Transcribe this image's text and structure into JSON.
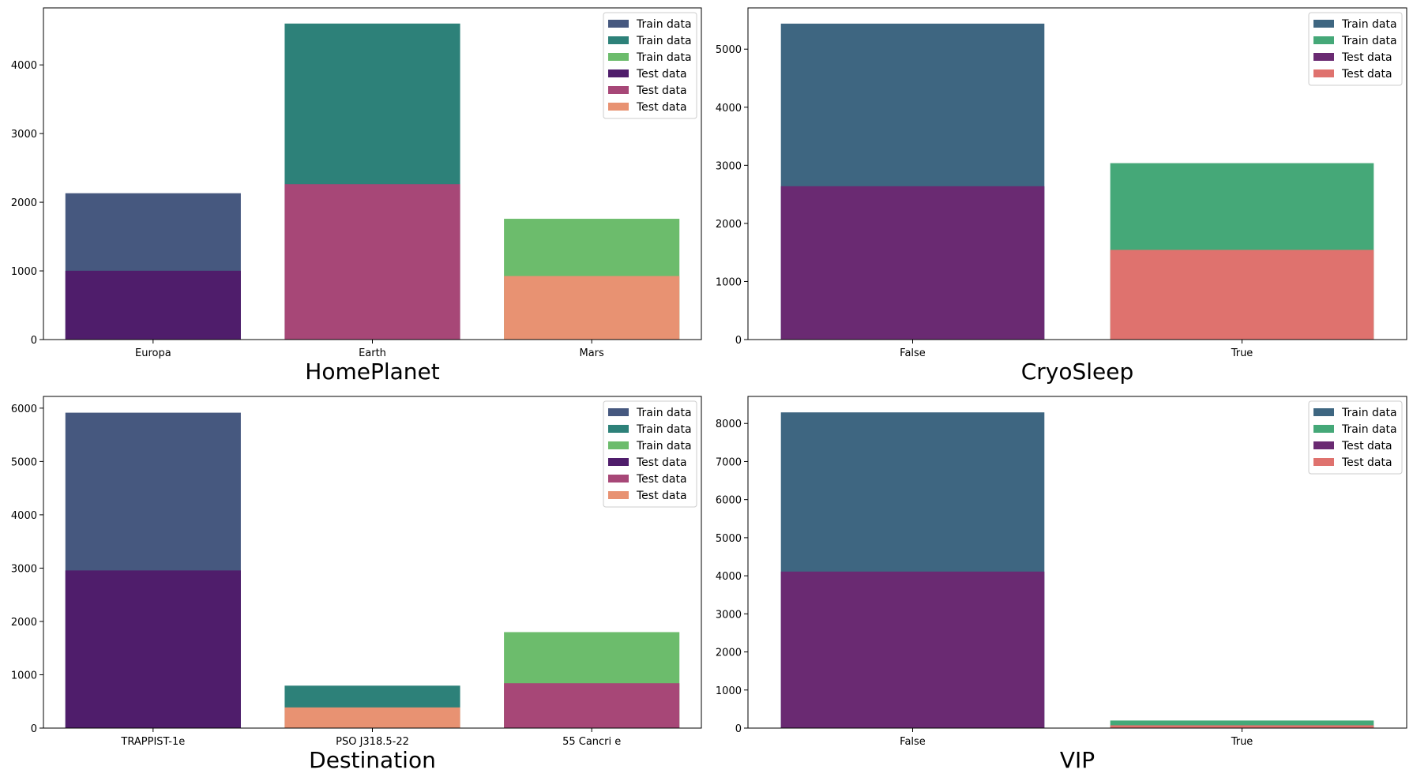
{
  "chart_data": [
    {
      "type": "bar",
      "xlabel": "HomePlanet",
      "ylabel": "",
      "categories": [
        "Europa",
        "Earth",
        "Mars"
      ],
      "ylim": [
        0,
        4830
      ],
      "yticks": [
        0,
        1000,
        2000,
        3000,
        4000
      ],
      "series": [
        {
          "name": "Train data",
          "values": [
            2131,
            4602,
            1759
          ],
          "colors": [
            "#46587f",
            "#2d8179",
            "#6cbc6c"
          ]
        },
        {
          "name": "Test data",
          "values": [
            1002,
            2263,
            925
          ],
          "colors": [
            "#4f1d6b",
            "#a74777",
            "#e89272"
          ]
        }
      ],
      "legend": {
        "location": "top-right",
        "entries": [
          {
            "label": "Train data",
            "color": "#46587f"
          },
          {
            "label": "Train data",
            "color": "#2d8179"
          },
          {
            "label": "Train data",
            "color": "#6cbc6c"
          },
          {
            "label": "Test data",
            "color": "#4f1d6b"
          },
          {
            "label": "Test data",
            "color": "#a74777"
          },
          {
            "label": "Test data",
            "color": "#e89272"
          }
        ]
      }
    },
    {
      "type": "bar",
      "xlabel": "CryoSleep",
      "ylabel": "",
      "categories": [
        "False",
        "True"
      ],
      "ylim": [
        0,
        5710
      ],
      "yticks": [
        0,
        1000,
        2000,
        3000,
        4000,
        5000
      ],
      "series": [
        {
          "name": "Train data",
          "values": [
            5439,
            3037
          ],
          "colors": [
            "#3e6681",
            "#45a878"
          ]
        },
        {
          "name": "Test data",
          "values": [
            2640,
            1544
          ],
          "colors": [
            "#6a2a72",
            "#df726e"
          ]
        }
      ],
      "legend": {
        "location": "top-right",
        "entries": [
          {
            "label": "Train data",
            "color": "#3e6681"
          },
          {
            "label": "Train data",
            "color": "#45a878"
          },
          {
            "label": "Test data",
            "color": "#6a2a72"
          },
          {
            "label": "Test data",
            "color": "#df726e"
          }
        ]
      }
    },
    {
      "type": "bar",
      "xlabel": "Destination",
      "ylabel": "",
      "categories": [
        "TRAPPIST-1e",
        "PSO J318.5-22",
        "55 Cancri e"
      ],
      "ylim": [
        0,
        6220
      ],
      "yticks": [
        0,
        1000,
        2000,
        3000,
        4000,
        5000,
        6000
      ],
      "series": [
        {
          "name": "Train data",
          "values": [
            5915,
            796,
            1800
          ],
          "colors": [
            "#46587f",
            "#2d8179",
            "#6cbc6c"
          ]
        },
        {
          "name": "Test data",
          "values": [
            2956,
            388,
            841
          ],
          "colors": [
            "#4f1d6b",
            "#e89272",
            "#a74777"
          ]
        }
      ],
      "legend": {
        "location": "top-right",
        "entries": [
          {
            "label": "Train data",
            "color": "#46587f"
          },
          {
            "label": "Train data",
            "color": "#2d8179"
          },
          {
            "label": "Train data",
            "color": "#6cbc6c"
          },
          {
            "label": "Test data",
            "color": "#4f1d6b"
          },
          {
            "label": "Test data",
            "color": "#a74777"
          },
          {
            "label": "Test data",
            "color": "#e89272"
          }
        ]
      }
    },
    {
      "type": "bar",
      "xlabel": "VIP",
      "ylabel": "",
      "categories": [
        "False",
        "True"
      ],
      "ylim": [
        0,
        8710
      ],
      "yticks": [
        0,
        1000,
        2000,
        3000,
        4000,
        5000,
        6000,
        7000,
        8000
      ],
      "series": [
        {
          "name": "Train data",
          "values": [
            8291,
            199
          ],
          "colors": [
            "#3e6681",
            "#45a878"
          ]
        },
        {
          "name": "Test data",
          "values": [
            4110,
            74
          ],
          "colors": [
            "#6a2a72",
            "#df726e"
          ]
        }
      ],
      "legend": {
        "location": "top-right",
        "entries": [
          {
            "label": "Train data",
            "color": "#3e6681"
          },
          {
            "label": "Train data",
            "color": "#45a878"
          },
          {
            "label": "Test data",
            "color": "#6a2a72"
          },
          {
            "label": "Test data",
            "color": "#df726e"
          }
        ]
      }
    }
  ]
}
